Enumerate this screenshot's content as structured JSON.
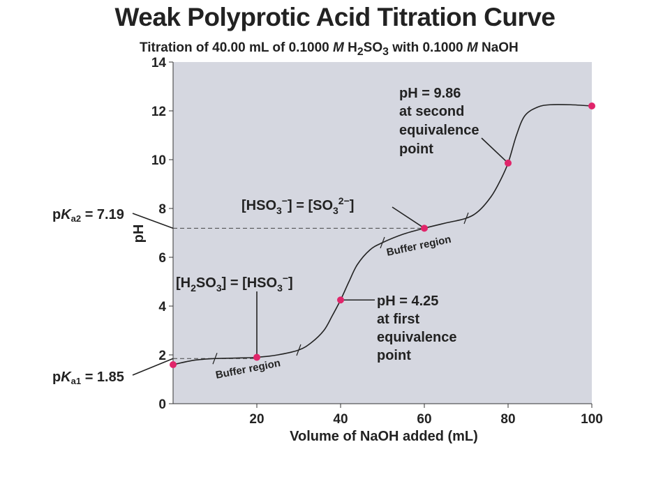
{
  "title": "Weak Polyprotic Acid Titration Curve",
  "subtitle": {
    "part1": "Titration of 40.00 mL of 0.1000 ",
    "molar1": "M",
    "part2": " H",
    "h_sub": "2",
    "part3": "SO",
    "so_sub": "3",
    "part4": " with 0.1000 ",
    "molar2": "M",
    "part5": " NaOH"
  },
  "chart_data": {
    "type": "line",
    "title": "Weak Polyprotic Acid Titration Curve",
    "xlabel": "Volume of NaOH added (mL)",
    "ylabel": "pH",
    "xlim": [
      0,
      100
    ],
    "ylim": [
      0,
      14
    ],
    "x_ticks": [
      "20",
      "40",
      "60",
      "80",
      "100"
    ],
    "y_ticks": [
      "0",
      "2",
      "4",
      "6",
      "8",
      "10",
      "12",
      "14"
    ],
    "series": [
      {
        "x": [
          0,
          5,
          10,
          15,
          20,
          25,
          30,
          33,
          36,
          38,
          40,
          42,
          44,
          47,
          50,
          55,
          60,
          65,
          70,
          73,
          76,
          78,
          80,
          82,
          84,
          87,
          90,
          95,
          100
        ],
        "y": [
          1.6,
          1.78,
          1.85,
          1.87,
          1.9,
          2.0,
          2.2,
          2.5,
          3.0,
          3.6,
          4.25,
          5.0,
          5.7,
          6.3,
          6.6,
          6.95,
          7.19,
          7.4,
          7.6,
          7.9,
          8.5,
          9.1,
          9.86,
          11.0,
          11.8,
          12.15,
          12.25,
          12.25,
          12.2
        ]
      }
    ],
    "points": [
      {
        "x": 0,
        "y": 1.6
      },
      {
        "x": 20,
        "y": 1.9
      },
      {
        "x": 40,
        "y": 4.25
      },
      {
        "x": 60,
        "y": 7.19
      },
      {
        "x": 80,
        "y": 9.86
      },
      {
        "x": 100,
        "y": 12.2
      }
    ],
    "pka1": {
      "value": 1.85,
      "text_p": "p",
      "text_k": "K",
      "text_sub": "a1",
      "text_eq": " = 1.85"
    },
    "pka2": {
      "value": 7.19,
      "text_p": "p",
      "text_k": "K",
      "text_sub": "a2",
      "text_eq": " = 7.19"
    },
    "annotations": {
      "half1": {
        "a": "[H",
        "b": "2",
        "c": "SO",
        "d": "3",
        "e": "] = [HSO",
        "f": "3",
        "g": "−",
        "h": "]"
      },
      "half2": {
        "a": "[HSO",
        "b": "3",
        "c": "−",
        "d": "] = [SO",
        "e": "3",
        "f": "2−",
        "g": "]"
      },
      "eq1": [
        "pH = 4.25",
        "at first",
        "equivalence",
        "point"
      ],
      "eq2": [
        "pH = 9.86",
        "at second",
        "equivalence",
        "point"
      ],
      "buffer1": "Buffer region",
      "buffer2": "Buffer region"
    },
    "colors": {
      "plot_bg": "#d5d7e0",
      "curve": "#222222",
      "point": "#e0256a"
    }
  }
}
